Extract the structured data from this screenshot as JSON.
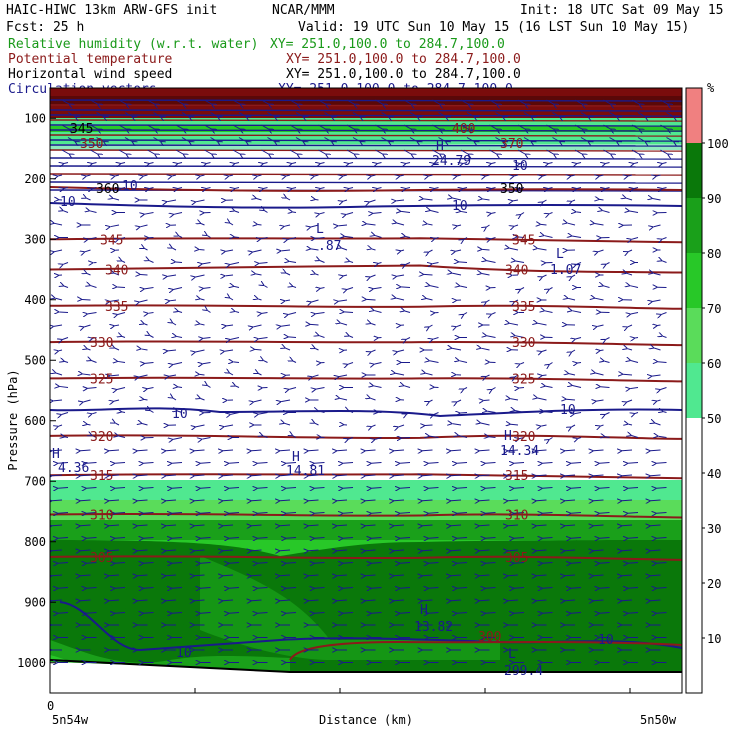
{
  "header": {
    "title": "HAIC-HIWC 13km ARW-GFS init",
    "org": "NCAR/MMM",
    "init": "Init: 18 UTC Sat 09 May 15",
    "fcst": "Fcst:    25 h",
    "valid": "Valid: 19 UTC Sun 10 May 15 (16 LST Sun 10 May 15)",
    "fields": [
      {
        "name": "Relative humidity (w.r.t. water)",
        "xy": "XY= 251.0,100.0 to 284.7,100.0",
        "color": "#1a9a1a"
      },
      {
        "name": "Potential temperature",
        "xy": "XY= 251.0,100.0 to 284.7,100.0",
        "color": "#8b1a1a"
      },
      {
        "name": "Horizontal wind speed",
        "xy": "XY= 251.0,100.0 to 284.7,100.0",
        "color": "#000000"
      },
      {
        "name": "Circulation vectors",
        "xy": "XY= 251.0,100.0 to 284.7,100.0",
        "color": "#1a1a8b"
      }
    ]
  },
  "chart_data": {
    "type": "cross-section",
    "ylabel": "Pressure (hPa)",
    "xlabel": "Distance (km)",
    "x_start_label": "0",
    "x_left_label": "5n54w",
    "x_right_label": "5n50w",
    "y_ticks": [
      100,
      200,
      300,
      400,
      500,
      600,
      700,
      800,
      900,
      1000
    ],
    "ylim": [
      1050,
      50
    ],
    "colorbar": {
      "unit": "%",
      "ticks": [
        10,
        20,
        30,
        40,
        50,
        60,
        70,
        80,
        90,
        100
      ],
      "bands": [
        {
          "from": 0,
          "to": 50,
          "color": "#ffffff"
        },
        {
          "from": 50,
          "to": 60,
          "color": "#50e890"
        },
        {
          "from": 60,
          "to": 70,
          "color": "#5adc5a"
        },
        {
          "from": 70,
          "to": 80,
          "color": "#28c828"
        },
        {
          "from": 80,
          "to": 90,
          "color": "#1aa01a"
        },
        {
          "from": 90,
          "to": 100,
          "color": "#0a780a"
        },
        {
          "from": 100,
          "to": 110,
          "color": "#f08080"
        }
      ]
    },
    "theta_contours": [
      {
        "value": 345,
        "p": 300,
        "labels": [
          "345",
          "345"
        ]
      },
      {
        "value": 340,
        "p": 350,
        "labels": [
          "340",
          "340"
        ]
      },
      {
        "value": 335,
        "p": 410,
        "labels": [
          "335",
          "335"
        ]
      },
      {
        "value": 330,
        "p": 470,
        "labels": [
          "330",
          "330"
        ]
      },
      {
        "value": 325,
        "p": 530,
        "labels": [
          "325",
          "325"
        ]
      },
      {
        "value": 320,
        "p": 625,
        "labels": [
          "320",
          "320"
        ]
      },
      {
        "value": 315,
        "p": 690,
        "labels": [
          "315",
          "315"
        ]
      },
      {
        "value": 310,
        "p": 755,
        "labels": [
          "310",
          "310"
        ]
      },
      {
        "value": 305,
        "p": 825,
        "labels": [
          "305",
          "305"
        ]
      },
      {
        "value": 300,
        "p": 965,
        "labels": [
          "300"
        ]
      }
    ],
    "speed_contour_labels": [
      "10",
      "10",
      "10",
      "10",
      "10",
      "10",
      "10",
      "10"
    ],
    "extrema": [
      {
        "type": "L",
        "value": ".87"
      },
      {
        "type": "L",
        "value": "1.07"
      },
      {
        "type": "H",
        "value": "24.79"
      },
      {
        "type": "H",
        "value": "4.36"
      },
      {
        "type": "H",
        "value": "14.81"
      },
      {
        "type": "H",
        "value": "14.34"
      },
      {
        "type": "H",
        "value": "13.82"
      },
      {
        "type": "L",
        "value": "299.4"
      }
    ],
    "upper_theta_labels": [
      "345",
      "350",
      "360",
      "370",
      "350",
      "400"
    ]
  }
}
